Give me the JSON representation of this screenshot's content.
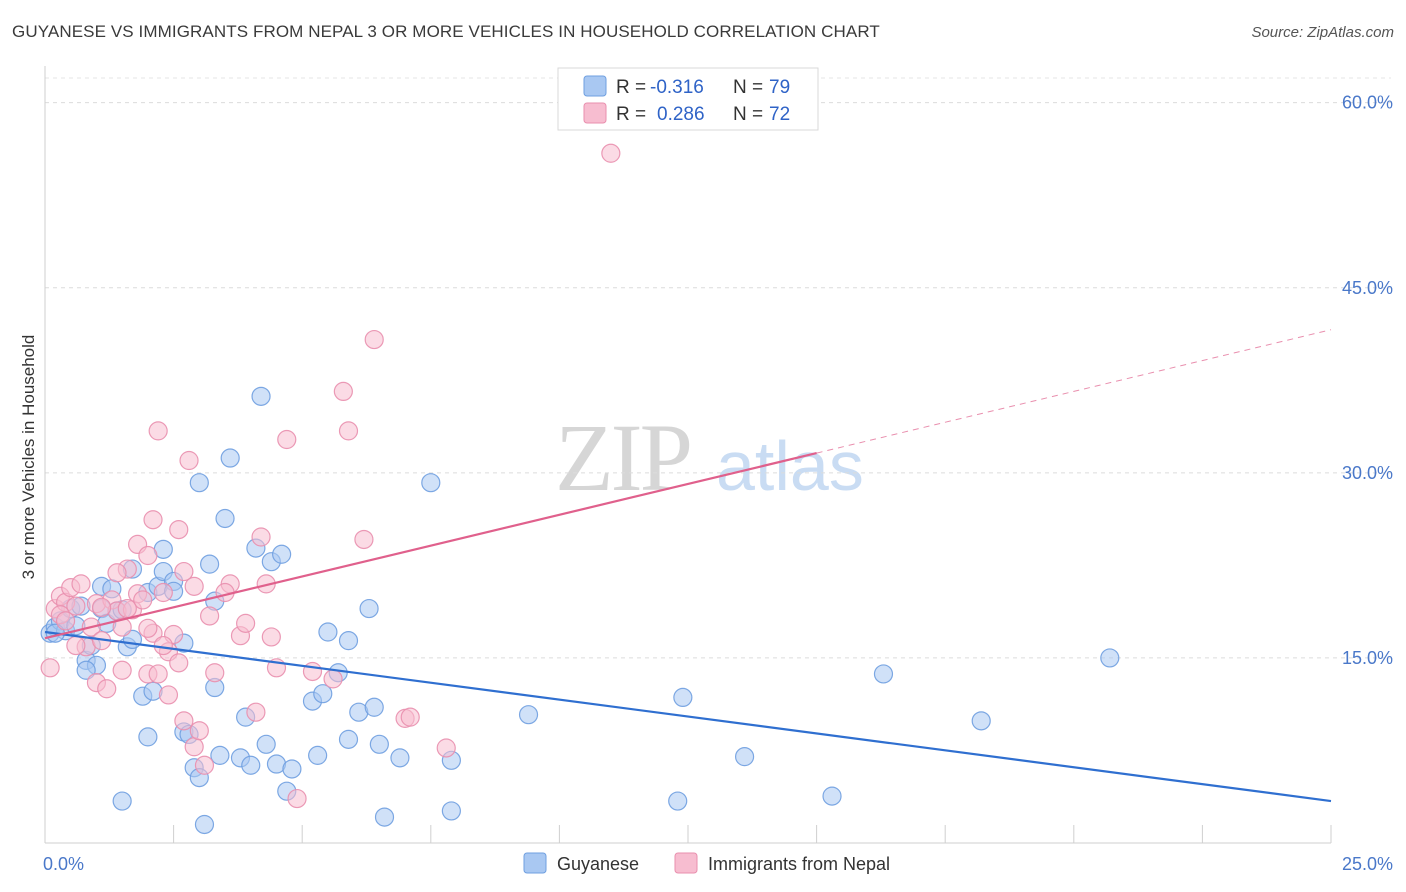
{
  "title": "GUYANESE VS IMMIGRANTS FROM NEPAL 3 OR MORE VEHICLES IN HOUSEHOLD CORRELATION CHART",
  "source": "Source: ZipAtlas.com",
  "watermark": {
    "zip": "ZIP",
    "atlas": "atlas"
  },
  "legend": {
    "rows": [
      {
        "r_label": "R =",
        "r_value": "-0.316",
        "n_label": "N =",
        "n_value": "79",
        "color": "#a9c8f2",
        "stroke": "#6f9fe0"
      },
      {
        "r_label": "R =",
        "r_value": "0.286",
        "n_label": "N =",
        "n_value": "72",
        "color": "#f7bdd0",
        "stroke": "#e98fae"
      }
    ]
  },
  "bottom_legend": [
    "Guyanese",
    "Immigrants from Nepal"
  ],
  "chart_data": {
    "type": "scatter",
    "ylabel": "3 or more Vehicles in Household",
    "xlim": [
      0,
      25
    ],
    "ylim": [
      0,
      62
    ],
    "x_tick_labels": {
      "min": "0.0%",
      "max": "25.0%"
    },
    "y_ticks": [
      {
        "value": 15,
        "label": "15.0%"
      },
      {
        "value": 30,
        "label": "30.0%"
      },
      {
        "value": 45,
        "label": "45.0%"
      },
      {
        "value": 60,
        "label": "60.0%"
      }
    ],
    "colors": {
      "blue_fill": "#a9c8f2",
      "blue_stroke": "#6f9fe0",
      "blue_line": "#2f6fd0",
      "pink_fill": "#f7bdd0",
      "pink_stroke": "#e98fae",
      "pink_line": "#e0608c"
    },
    "series": [
      {
        "name": "Guyanese",
        "trend": {
          "x0": 0,
          "y0": 17.1,
          "x1": 25,
          "y1": 3.4
        },
        "points": [
          [
            0.1,
            17.0
          ],
          [
            0.2,
            17.5
          ],
          [
            0.3,
            18.0
          ],
          [
            0.4,
            17.2
          ],
          [
            0.5,
            19.0
          ],
          [
            0.6,
            17.6
          ],
          [
            0.7,
            19.2
          ],
          [
            0.8,
            14.8
          ],
          [
            0.9,
            16.0
          ],
          [
            1.0,
            14.4
          ],
          [
            1.1,
            19.0
          ],
          [
            1.1,
            20.8
          ],
          [
            1.2,
            17.8
          ],
          [
            1.3,
            20.6
          ],
          [
            1.4,
            18.8
          ],
          [
            1.5,
            18.9
          ],
          [
            1.6,
            15.9
          ],
          [
            1.7,
            22.2
          ],
          [
            1.7,
            16.5
          ],
          [
            1.9,
            11.9
          ],
          [
            2.0,
            8.6
          ],
          [
            2.0,
            20.3
          ],
          [
            2.1,
            12.3
          ],
          [
            2.2,
            20.8
          ],
          [
            2.3,
            22.0
          ],
          [
            2.3,
            23.8
          ],
          [
            2.5,
            21.2
          ],
          [
            2.5,
            20.4
          ],
          [
            2.7,
            9.0
          ],
          [
            2.7,
            16.2
          ],
          [
            2.8,
            8.8
          ],
          [
            2.9,
            6.1
          ],
          [
            3.0,
            5.3
          ],
          [
            3.0,
            29.2
          ],
          [
            3.1,
            1.5
          ],
          [
            3.2,
            22.6
          ],
          [
            3.3,
            19.6
          ],
          [
            3.3,
            12.6
          ],
          [
            3.4,
            7.1
          ],
          [
            3.5,
            26.3
          ],
          [
            3.6,
            31.2
          ],
          [
            3.8,
            6.9
          ],
          [
            3.9,
            10.2
          ],
          [
            4.0,
            6.3
          ],
          [
            4.1,
            23.9
          ],
          [
            4.2,
            36.2
          ],
          [
            4.3,
            8.0
          ],
          [
            4.4,
            22.8
          ],
          [
            4.5,
            6.4
          ],
          [
            4.6,
            23.4
          ],
          [
            4.7,
            4.2
          ],
          [
            4.8,
            6.0
          ],
          [
            5.2,
            11.5
          ],
          [
            5.3,
            7.1
          ],
          [
            5.4,
            12.1
          ],
          [
            5.5,
            17.1
          ],
          [
            5.7,
            13.8
          ],
          [
            5.9,
            16.4
          ],
          [
            5.9,
            8.4
          ],
          [
            6.1,
            10.6
          ],
          [
            6.3,
            19.0
          ],
          [
            6.4,
            11.0
          ],
          [
            6.5,
            8.0
          ],
          [
            6.6,
            2.1
          ],
          [
            6.9,
            6.9
          ],
          [
            7.5,
            29.2
          ],
          [
            7.9,
            2.6
          ],
          [
            7.9,
            6.7
          ],
          [
            9.4,
            10.4
          ],
          [
            12.3,
            3.4
          ],
          [
            12.4,
            11.8
          ],
          [
            13.6,
            7.0
          ],
          [
            15.3,
            3.8
          ],
          [
            16.3,
            13.7
          ],
          [
            18.2,
            9.9
          ],
          [
            20.7,
            15.0
          ],
          [
            1.5,
            3.4
          ],
          [
            0.2,
            17.0
          ],
          [
            0.8,
            14.0
          ]
        ]
      },
      {
        "name": "Immigrants from Nepal",
        "trend": {
          "x0": 0,
          "y0": 16.6,
          "x1": 15,
          "y1": 31.6,
          "dash_x1": 25,
          "dash_y1": 41.6
        },
        "points": [
          [
            0.1,
            14.2
          ],
          [
            0.2,
            19.0
          ],
          [
            0.3,
            20.0
          ],
          [
            0.4,
            19.5
          ],
          [
            0.5,
            20.7
          ],
          [
            0.6,
            19.2
          ],
          [
            0.7,
            21.0
          ],
          [
            0.8,
            15.9
          ],
          [
            0.9,
            17.5
          ],
          [
            1.0,
            19.4
          ],
          [
            1.0,
            13.0
          ],
          [
            1.1,
            16.4
          ],
          [
            1.2,
            12.5
          ],
          [
            1.3,
            19.7
          ],
          [
            1.4,
            18.8
          ],
          [
            1.5,
            17.5
          ],
          [
            1.5,
            14.0
          ],
          [
            1.6,
            22.2
          ],
          [
            1.7,
            18.9
          ],
          [
            1.8,
            20.2
          ],
          [
            1.8,
            24.2
          ],
          [
            1.9,
            19.7
          ],
          [
            2.0,
            13.7
          ],
          [
            2.0,
            23.3
          ],
          [
            2.1,
            17.0
          ],
          [
            2.1,
            26.2
          ],
          [
            2.2,
            33.4
          ],
          [
            2.2,
            13.7
          ],
          [
            2.3,
            20.3
          ],
          [
            2.4,
            12.0
          ],
          [
            2.4,
            15.5
          ],
          [
            2.5,
            16.9
          ],
          [
            2.6,
            14.6
          ],
          [
            2.6,
            25.4
          ],
          [
            2.7,
            9.9
          ],
          [
            2.7,
            22.0
          ],
          [
            2.8,
            31.0
          ],
          [
            2.9,
            7.8
          ],
          [
            2.9,
            20.8
          ],
          [
            3.0,
            9.1
          ],
          [
            3.1,
            6.3
          ],
          [
            3.2,
            18.4
          ],
          [
            3.3,
            13.8
          ],
          [
            3.6,
            21.0
          ],
          [
            3.8,
            16.8
          ],
          [
            3.9,
            17.8
          ],
          [
            4.1,
            10.6
          ],
          [
            4.2,
            24.8
          ],
          [
            4.3,
            21.0
          ],
          [
            4.4,
            16.7
          ],
          [
            4.5,
            14.2
          ],
          [
            4.7,
            32.7
          ],
          [
            4.9,
            3.6
          ],
          [
            5.2,
            13.9
          ],
          [
            5.6,
            13.3
          ],
          [
            5.8,
            36.6
          ],
          [
            5.9,
            33.4
          ],
          [
            6.2,
            24.6
          ],
          [
            6.4,
            40.8
          ],
          [
            7.0,
            10.1
          ],
          [
            7.1,
            10.2
          ],
          [
            7.8,
            7.7
          ],
          [
            11.0,
            55.9
          ],
          [
            0.3,
            18.5
          ],
          [
            0.6,
            16.0
          ],
          [
            1.4,
            21.9
          ],
          [
            2.3,
            16.0
          ],
          [
            1.1,
            19.1
          ],
          [
            0.4,
            18.0
          ],
          [
            3.5,
            20.3
          ],
          [
            2.0,
            17.4
          ],
          [
            1.6,
            19.0
          ]
        ]
      }
    ]
  }
}
